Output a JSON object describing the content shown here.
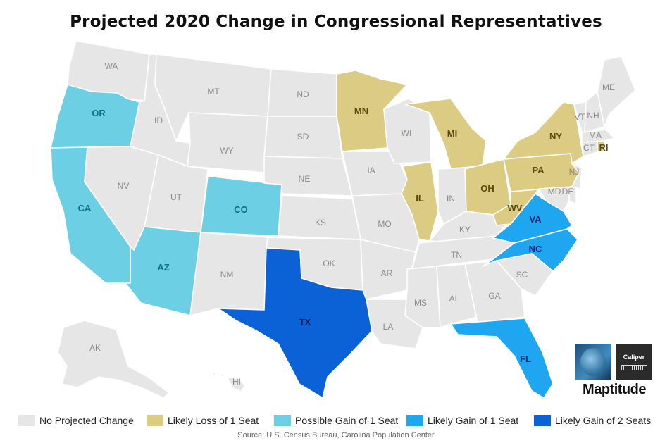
{
  "title": "Projected 2020 Change in Congressional Representatives",
  "colors": {
    "no_change": "#e6e6e6",
    "loss_1": "#dccb83",
    "possible_gain_1": "#6dcfe3",
    "likely_gain_1": "#1fa6f0",
    "likely_gain_2": "#0a62d6"
  },
  "label_colors": {
    "no_change": "#8a8a8a",
    "loss_1": "#5a4a10",
    "possible_gain_1": "#0f6f86",
    "likely_gain_1": "#10227a",
    "likely_gain_2": "#0b1a60"
  },
  "legend": [
    {
      "label": "No Projected Change",
      "category": "no_change"
    },
    {
      "label": "Likely Loss of 1 Seat",
      "category": "loss_1"
    },
    {
      "label": "Possible Gain of 1 Seat",
      "category": "possible_gain_1"
    },
    {
      "label": "Likely Gain of 1 Seat",
      "category": "likely_gain_1"
    },
    {
      "label": "Likely Gain of 2 Seats",
      "category": "likely_gain_2"
    }
  ],
  "states": [
    {
      "abbr": "WA",
      "category": "no_change"
    },
    {
      "abbr": "OR",
      "category": "possible_gain_1"
    },
    {
      "abbr": "CA",
      "category": "possible_gain_1"
    },
    {
      "abbr": "ID",
      "category": "no_change"
    },
    {
      "abbr": "NV",
      "category": "no_change"
    },
    {
      "abbr": "MT",
      "category": "no_change"
    },
    {
      "abbr": "WY",
      "category": "no_change"
    },
    {
      "abbr": "UT",
      "category": "no_change"
    },
    {
      "abbr": "AZ",
      "category": "possible_gain_1"
    },
    {
      "abbr": "CO",
      "category": "possible_gain_1"
    },
    {
      "abbr": "NM",
      "category": "no_change"
    },
    {
      "abbr": "ND",
      "category": "no_change"
    },
    {
      "abbr": "SD",
      "category": "no_change"
    },
    {
      "abbr": "NE",
      "category": "no_change"
    },
    {
      "abbr": "KS",
      "category": "no_change"
    },
    {
      "abbr": "OK",
      "category": "no_change"
    },
    {
      "abbr": "TX",
      "category": "likely_gain_2"
    },
    {
      "abbr": "MN",
      "category": "loss_1"
    },
    {
      "abbr": "IA",
      "category": "no_change"
    },
    {
      "abbr": "MO",
      "category": "no_change"
    },
    {
      "abbr": "AR",
      "category": "no_change"
    },
    {
      "abbr": "LA",
      "category": "no_change"
    },
    {
      "abbr": "WI",
      "category": "no_change"
    },
    {
      "abbr": "IL",
      "category": "loss_1"
    },
    {
      "abbr": "MI",
      "category": "loss_1"
    },
    {
      "abbr": "IN",
      "category": "no_change"
    },
    {
      "abbr": "KY",
      "category": "no_change"
    },
    {
      "abbr": "TN",
      "category": "no_change"
    },
    {
      "abbr": "MS",
      "category": "no_change"
    },
    {
      "abbr": "AL",
      "category": "no_change"
    },
    {
      "abbr": "GA",
      "category": "no_change"
    },
    {
      "abbr": "FL",
      "category": "likely_gain_1"
    },
    {
      "abbr": "SC",
      "category": "no_change"
    },
    {
      "abbr": "NC",
      "category": "likely_gain_1"
    },
    {
      "abbr": "VA",
      "category": "likely_gain_1"
    },
    {
      "abbr": "WV",
      "category": "loss_1"
    },
    {
      "abbr": "OH",
      "category": "loss_1"
    },
    {
      "abbr": "PA",
      "category": "loss_1"
    },
    {
      "abbr": "NY",
      "category": "loss_1"
    },
    {
      "abbr": "NJ",
      "category": "no_change"
    },
    {
      "abbr": "MD",
      "category": "no_change"
    },
    {
      "abbr": "DE",
      "category": "no_change"
    },
    {
      "abbr": "CT",
      "category": "no_change"
    },
    {
      "abbr": "RI",
      "category": "loss_1"
    },
    {
      "abbr": "MA",
      "category": "no_change"
    },
    {
      "abbr": "VT",
      "category": "no_change"
    },
    {
      "abbr": "NH",
      "category": "no_change"
    },
    {
      "abbr": "ME",
      "category": "no_change"
    },
    {
      "abbr": "AK",
      "category": "no_change"
    },
    {
      "abbr": "HI",
      "category": "no_change"
    }
  ],
  "source": "Source: U.S. Census Bureau, Carolina Population Center",
  "logo": {
    "caliper": "Caliper",
    "wordmark": "Maptitude"
  }
}
